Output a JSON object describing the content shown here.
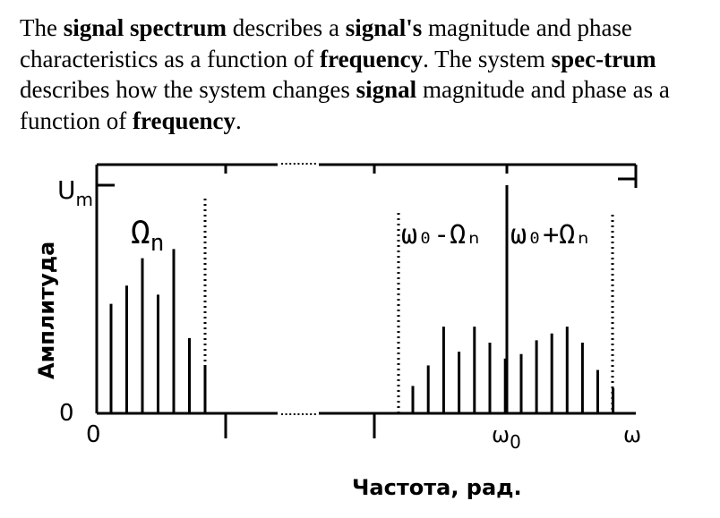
{
  "paragraph": [
    {
      "t": "The ",
      "b": false
    },
    {
      "t": "signal spectrum",
      "b": true
    },
    {
      "t": " describes a ",
      "b": false
    },
    {
      "t": "signal's",
      "b": true
    },
    {
      "t": " magnitude and phase characteristics as a function of ",
      "b": false
    },
    {
      "t": "frequency",
      "b": true
    },
    {
      "t": ". The system ",
      "b": false
    },
    {
      "t": "spec-trum",
      "b": true
    },
    {
      "t": " describes how the system changes ",
      "b": false
    },
    {
      "t": "signal",
      "b": true
    },
    {
      "t": " magnitude and phase as a function of ",
      "b": false
    },
    {
      "t": "frequency",
      "b": true
    },
    {
      "t": ".",
      "b": false
    }
  ],
  "diagram": {
    "y_axis_label": "Амплитуда",
    "y_max_label": "U",
    "y_max_sub": "m",
    "y_zero_label": "0",
    "x_zero_label": "0",
    "x_axis_label": "Частота, рад.",
    "x_end_label": "ω",
    "carrier_label": "ω",
    "carrier_sub": "0",
    "baseband_label": "Ω",
    "baseband_sub": "n",
    "lower_band_label": "ω₀-Ωₙ",
    "upper_band_label": "ω₀+Ωₙ",
    "baseband_amplitudes": [
      0.48,
      0.56,
      0.68,
      0.52,
      0.72,
      0.33,
      0.21
    ],
    "lower_sideband_amplitudes": [
      0.12,
      0.21,
      0.38,
      0.27,
      0.38,
      0.31,
      0.24
    ],
    "upper_sideband_amplitudes": [
      0.26,
      0.32,
      0.35,
      0.38,
      0.31,
      0.19,
      0.11
    ],
    "carrier_amplitude": 1.0
  }
}
